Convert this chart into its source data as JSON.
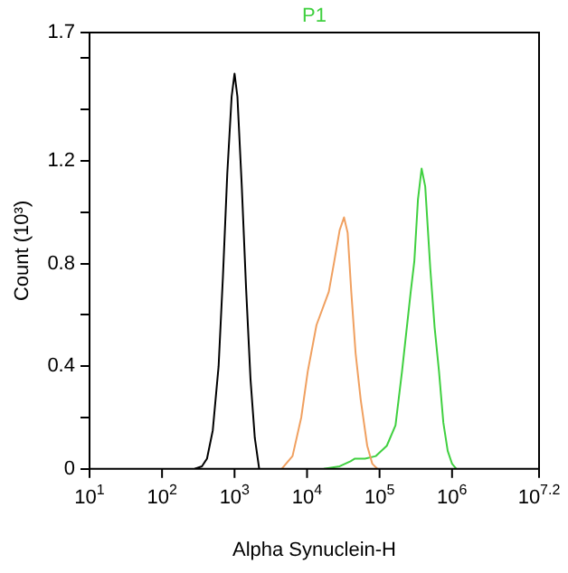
{
  "chart_data": {
    "type": "line",
    "xlabel": "Alpha Synuclein-H",
    "ylabel": "Count (10³)",
    "log": "x",
    "grid": false,
    "marker": "none",
    "legend": "top",
    "xlim": [
      10,
      15848932
    ],
    "xticks": [
      {
        "value": 10,
        "label": "10$^{1}$"
      },
      {
        "value": 100,
        "label": "10$^{2}$"
      },
      {
        "value": 1000,
        "label": "10$^{3}$"
      },
      {
        "value": 10000,
        "label": "10$^{4}$"
      },
      {
        "value": 100000,
        "label": "10$^{5}$"
      },
      {
        "value": 1000000,
        "label": "10$^{6}$"
      },
      {
        "value": 15848932,
        "label": "10$^{7.2}$"
      }
    ],
    "ylim": [
      0,
      1.7
    ],
    "yticks": [
      0,
      {
        "value": 0.2,
        "label": null
      },
      0.4,
      {
        "value": 0.6,
        "label": null
      },
      0.8,
      {
        "value": 1.0,
        "label": null
      },
      1.2,
      {
        "value": 1.4,
        "label": null
      },
      {
        "value": 1.6,
        "label": null
      },
      1.7
    ],
    "series": [
      {
        "color": "#000000",
        "x": [
          282,
          355,
          417,
          501,
          603,
          692,
          794,
          912,
          1000,
          1096,
          1259,
          1445,
          1660,
          1905,
          2188
        ],
        "values": [
          0,
          0.01,
          0.04,
          0.15,
          0.4,
          0.75,
          1.15,
          1.45,
          1.54,
          1.45,
          1.1,
          0.7,
          0.35,
          0.12,
          0
        ]
      },
      {
        "color": "#f0a060",
        "x": [
          4467,
          6310,
          8318,
          10233,
          13490,
          19953,
          23442,
          28184,
          32359,
          36308,
          40738,
          46774,
          54954,
          67608,
          79433,
          93325
        ],
        "values": [
          0,
          0.05,
          0.2,
          0.38,
          0.56,
          0.69,
          0.8,
          0.93,
          0.98,
          0.92,
          0.69,
          0.45,
          0.27,
          0.09,
          0.02,
          0
        ]
      },
      {
        "name": "P1",
        "color": "#40d040",
        "x": [
          16982,
          28184,
          39811,
          45709,
          63096,
          89125,
          125893,
          165959,
          204174,
          269153,
          301995,
          338844,
          380189,
          426580,
          501187,
          575440,
          660693,
          758578,
          870964,
          1000000,
          1148154
        ],
        "values": [
          0,
          0.01,
          0.03,
          0.04,
          0.04,
          0.05,
          0.09,
          0.17,
          0.38,
          0.69,
          0.81,
          1.05,
          1.17,
          1.1,
          0.78,
          0.55,
          0.38,
          0.18,
          0.07,
          0.02,
          0
        ]
      }
    ]
  }
}
